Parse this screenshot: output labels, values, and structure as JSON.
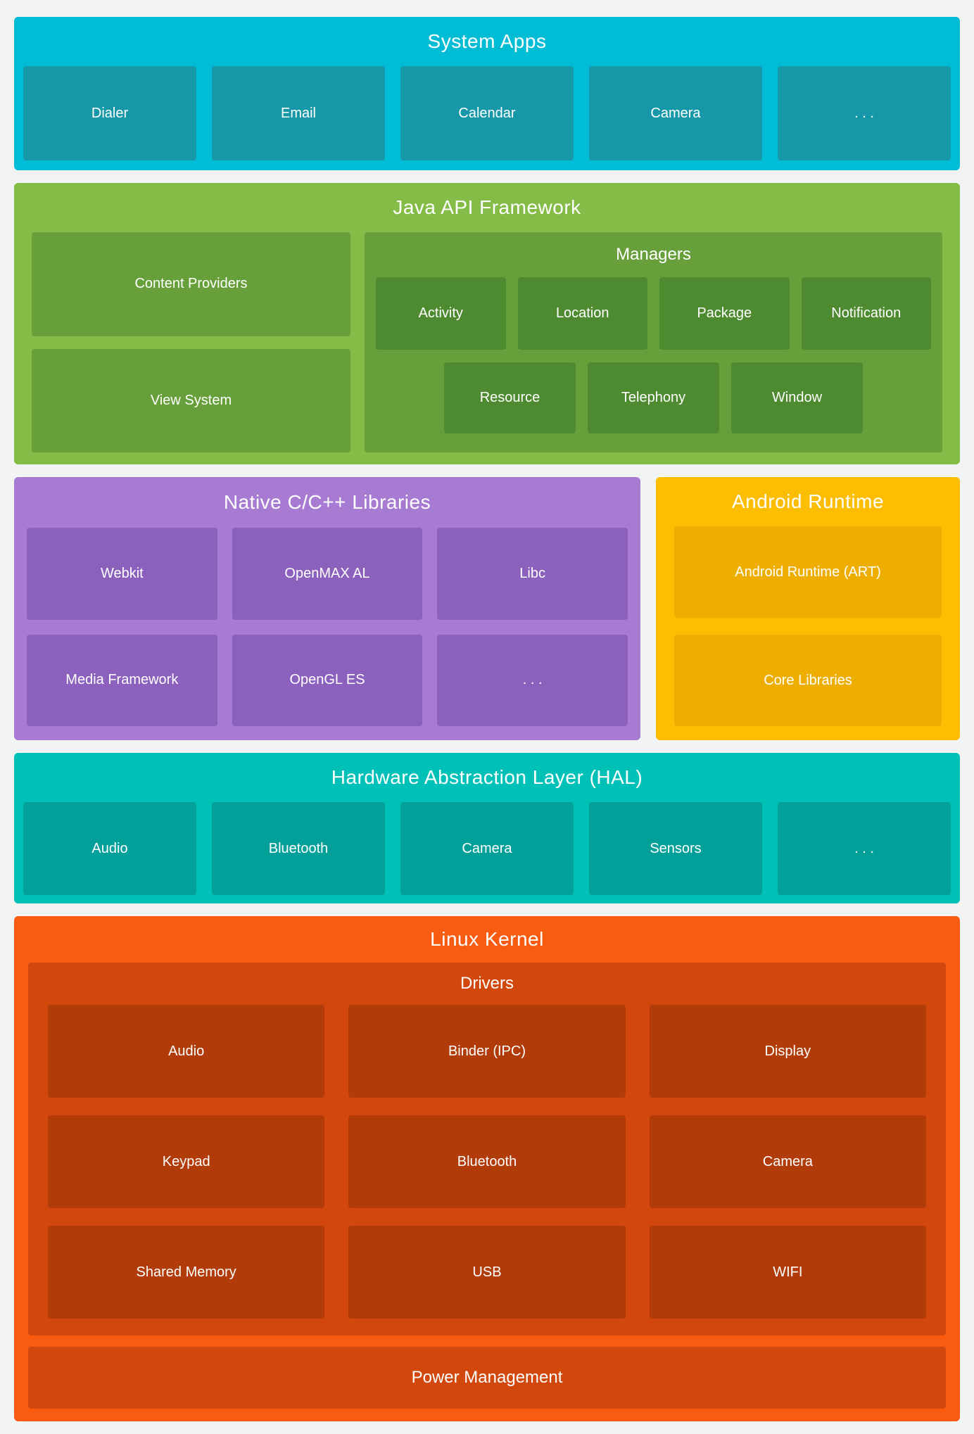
{
  "page": {
    "background": "#f2f3f3",
    "text_color": "#ffffff"
  },
  "sections": {
    "system_apps": {
      "title": "System Apps",
      "color": "#00bcd4",
      "box_color": "#1798a8",
      "boxes": [
        "Dialer",
        "Email",
        "Calendar",
        "Camera",
        ". . ."
      ]
    },
    "java_api": {
      "title": "Java API Framework",
      "color": "#85bc47",
      "box_color": "#67a03b",
      "left_boxes": [
        "Content Providers",
        "View System"
      ],
      "managers": {
        "title": "Managers",
        "box_color": "#4e8a30",
        "row1": [
          "Activity",
          "Location",
          "Package",
          "Notification"
        ],
        "row2": [
          "Resource",
          "Telephony",
          "Window"
        ]
      }
    },
    "native_libs": {
      "title": "Native C/C++ Libraries",
      "color": "#a77bd2",
      "box_color": "#8b61bd",
      "boxes": [
        "Webkit",
        "OpenMAX AL",
        "Libc",
        "Media Framework",
        "OpenGL ES",
        ". . ."
      ]
    },
    "android_runtime": {
      "title": "Android Runtime",
      "color": "#fdbd00",
      "box_color": "#eeae01",
      "boxes": [
        "Android Runtime (ART)",
        "Core Libraries"
      ]
    },
    "hal": {
      "title": "Hardware Abstraction Layer (HAL)",
      "color": "#00c1b8",
      "box_color": "#03a09a",
      "boxes": [
        "Audio",
        "Bluetooth",
        "Camera",
        "Sensors",
        ". . ."
      ]
    },
    "linux_kernel": {
      "title": "Linux Kernel",
      "color": "#f95b10",
      "panel_color": "#d2480c",
      "box_color": "#b13b09",
      "drivers": {
        "title": "Drivers",
        "boxes": [
          "Audio",
          "Binder (IPC)",
          "Display",
          "Keypad",
          "Bluetooth",
          "Camera",
          "Shared Memory",
          "USB",
          "WIFI"
        ]
      },
      "power": "Power Management"
    }
  }
}
